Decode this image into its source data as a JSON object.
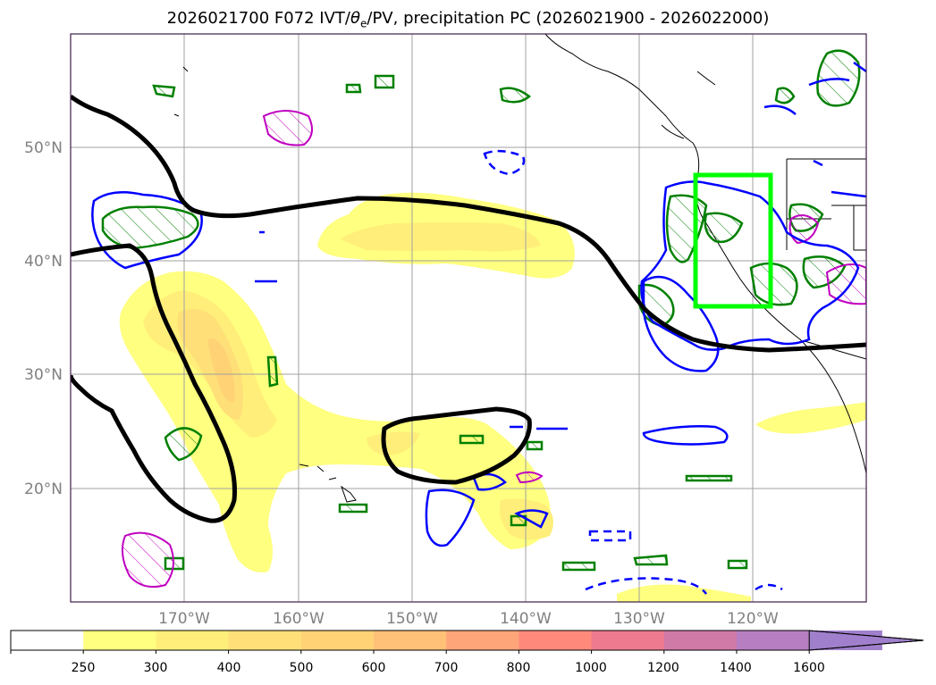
{
  "title": {
    "prefix": "2026021700 F072 IVT/",
    "theta": "θ",
    "theta_sub": "e",
    "suffix": "/PV, precipitation PC (2026021900 - 2026022000)"
  },
  "colors": {
    "ivt_contour": "#000000",
    "box": "#00ff00",
    "pv_contour": "#0000ff",
    "precip_contour": "#008000",
    "theta_contour": "#c000c0"
  },
  "axes": {
    "lat_labels": [
      "50°N",
      "40°N",
      "30°N",
      "20°N"
    ],
    "lon_labels": [
      "170°W",
      "160°W",
      "150°W",
      "140°W",
      "130°W",
      "120°W"
    ]
  },
  "colorbar": {
    "ticks": [
      "250",
      "300",
      "400",
      "500",
      "600",
      "700",
      "800",
      "1000",
      "1200",
      "1400",
      "1600"
    ],
    "colors": [
      "#ffffff",
      "#ffff80",
      "#ffef7a",
      "#ffe078",
      "#ffd276",
      "#ffc178",
      "#ffa57a",
      "#ff8a7c",
      "#ed7a8e",
      "#d07aa8",
      "#b77ec2",
      "#a080cc"
    ],
    "extend": "max"
  }
}
